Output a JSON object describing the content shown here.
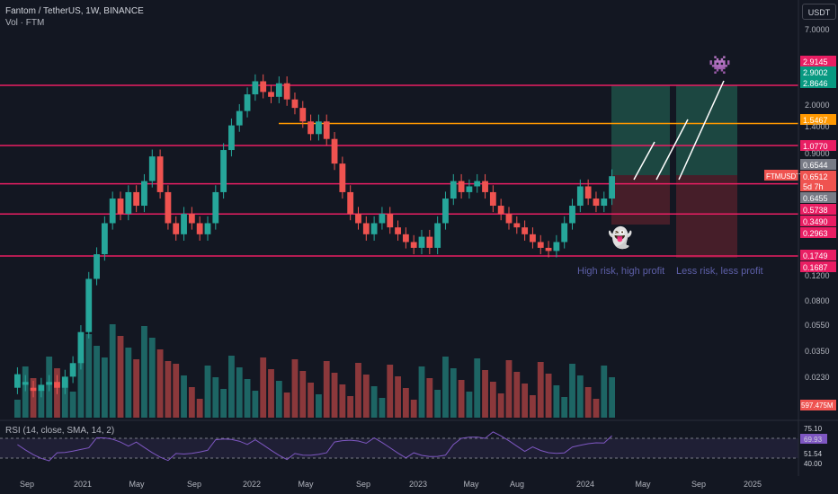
{
  "header": {
    "title": "Fantom / TetherUS, 1W, BINANCE",
    "vol": "Vol · FTM"
  },
  "axis_unit": "USDT",
  "notes": {
    "high_risk": "High risk, high profit",
    "less_risk": "Less risk, less profit"
  },
  "icons": {
    "ghost": "ghost-icon",
    "invader": "space-invader-icon"
  },
  "colors": {
    "bg": "#131722",
    "up": "#26a69a",
    "down": "#ef5350",
    "level": "#e91e63",
    "level_orange": "#ff9800",
    "rsi": "#7e57c2",
    "profit_zone": "#1e4d45",
    "loss_zone": "#4d1f2a"
  },
  "chart_data": {
    "type": "candlestick",
    "title": "Fantom / TetherUS, 1W, BINANCE",
    "x_ticks": [
      "Sep",
      "2021",
      "May",
      "Sep",
      "2022",
      "May",
      "Sep",
      "2023",
      "May",
      "Aug",
      "2024",
      "May",
      "Sep",
      "2025"
    ],
    "y_scale": "log",
    "y_ticks": [
      "7.0000",
      "2.0000",
      "1.4000",
      "0.9000",
      "0.1200",
      "0.0800",
      "0.0550",
      "0.0350",
      "0.0230"
    ],
    "price_labels": [
      {
        "value": "2.9145",
        "color": "#e91e63"
      },
      {
        "value": "2.9002",
        "color": "#089981"
      },
      {
        "value": "2.8646",
        "color": "#089981"
      },
      {
        "value": "1.5467",
        "color": "#ff9800"
      },
      {
        "value": "1.0770",
        "color": "#e91e63"
      },
      {
        "value": "0.6544",
        "color": "#787b86"
      },
      {
        "value": "0.6512",
        "color": "#ef5350"
      },
      {
        "value": "5d 7h",
        "color": "#ef5350"
      },
      {
        "value": "0.6455",
        "color": "#787b86"
      },
      {
        "value": "0.5738",
        "color": "#e91e63"
      },
      {
        "value": "0.3490",
        "color": "#e91e63"
      },
      {
        "value": "0.2963",
        "color": "#e91e63"
      },
      {
        "value": "0.1749",
        "color": "#e91e63"
      },
      {
        "value": "0.1687",
        "color": "#e91e63"
      }
    ],
    "symbol_label": "FTMUSDT",
    "levels": [
      2.9,
      1.5467,
      1.077,
      0.5738,
      0.349,
      0.1749
    ],
    "volume_label": "597.475M",
    "rsi": {
      "label": "RSI (14, close, SMA, 14, 2)",
      "values": [
        "75.10",
        "69.93",
        "51.54",
        "40.00"
      ]
    },
    "price_path": [
      [
        0.02,
        0.025
      ],
      [
        0.021,
        0.022
      ],
      [
        0.02,
        0.019
      ],
      [
        0.019,
        0.021
      ],
      [
        0.021,
        0.022
      ],
      [
        0.022,
        0.02
      ],
      [
        0.02,
        0.024
      ],
      [
        0.024,
        0.03
      ],
      [
        0.03,
        0.05
      ],
      [
        0.05,
        0.12
      ],
      [
        0.12,
        0.18
      ],
      [
        0.18,
        0.3
      ],
      [
        0.3,
        0.45
      ],
      [
        0.45,
        0.35
      ],
      [
        0.35,
        0.5
      ],
      [
        0.5,
        0.4
      ],
      [
        0.4,
        0.6
      ],
      [
        0.6,
        0.9
      ],
      [
        0.9,
        0.5
      ],
      [
        0.5,
        0.3
      ],
      [
        0.3,
        0.25
      ],
      [
        0.25,
        0.35
      ],
      [
        0.35,
        0.3
      ],
      [
        0.3,
        0.25
      ],
      [
        0.25,
        0.3
      ],
      [
        0.3,
        0.5
      ],
      [
        0.5,
        1.0
      ],
      [
        1.0,
        1.5
      ],
      [
        1.5,
        1.9
      ],
      [
        1.9,
        2.5
      ],
      [
        2.5,
        3.1
      ],
      [
        3.1,
        2.6
      ],
      [
        2.6,
        2.4
      ],
      [
        2.4,
        3.0
      ],
      [
        3.0,
        2.3
      ],
      [
        2.3,
        2.0
      ],
      [
        2.0,
        1.6
      ],
      [
        1.6,
        1.3
      ],
      [
        1.3,
        1.6
      ],
      [
        1.6,
        1.2
      ],
      [
        1.2,
        0.8
      ],
      [
        0.8,
        0.5
      ],
      [
        0.5,
        0.35
      ],
      [
        0.35,
        0.3
      ],
      [
        0.3,
        0.25
      ],
      [
        0.25,
        0.3
      ],
      [
        0.3,
        0.35
      ],
      [
        0.35,
        0.28
      ],
      [
        0.28,
        0.25
      ],
      [
        0.25,
        0.22
      ],
      [
        0.22,
        0.2
      ],
      [
        0.2,
        0.24
      ],
      [
        0.24,
        0.2
      ],
      [
        0.2,
        0.3
      ],
      [
        0.3,
        0.45
      ],
      [
        0.45,
        0.6
      ],
      [
        0.6,
        0.5
      ],
      [
        0.5,
        0.55
      ],
      [
        0.55,
        0.6
      ],
      [
        0.6,
        0.5
      ],
      [
        0.5,
        0.4
      ],
      [
        0.4,
        0.35
      ],
      [
        0.35,
        0.3
      ],
      [
        0.3,
        0.28
      ],
      [
        0.28,
        0.25
      ],
      [
        0.25,
        0.22
      ],
      [
        0.22,
        0.2
      ],
      [
        0.2,
        0.19
      ],
      [
        0.19,
        0.22
      ],
      [
        0.22,
        0.3
      ],
      [
        0.3,
        0.4
      ],
      [
        0.4,
        0.55
      ],
      [
        0.55,
        0.45
      ],
      [
        0.45,
        0.4
      ],
      [
        0.4,
        0.45
      ],
      [
        0.45,
        0.65
      ]
    ]
  }
}
